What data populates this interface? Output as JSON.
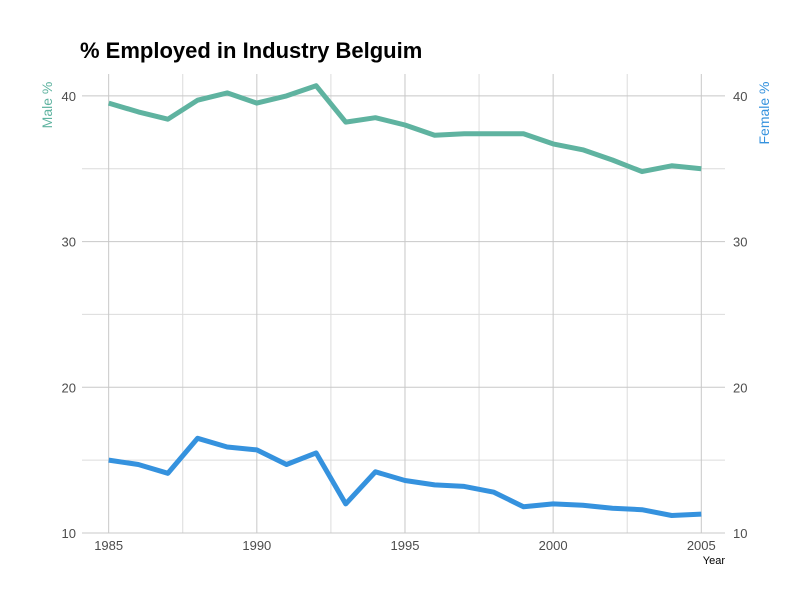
{
  "chart_data": {
    "type": "line",
    "title": "% Employed in Industry Belguim",
    "xlabel": "Year",
    "ylabel_left": "Male %",
    "ylabel_right": "Female %",
    "x": [
      1985,
      1986,
      1987,
      1988,
      1989,
      1990,
      1991,
      1992,
      1993,
      1994,
      1995,
      1996,
      1997,
      1998,
      1999,
      2000,
      2001,
      2002,
      2003,
      2004,
      2005
    ],
    "xlim": [
      1984.1,
      2005.8
    ],
    "ylim": [
      10,
      41.5
    ],
    "x_ticks": [
      1985,
      1990,
      1995,
      2000,
      2005
    ],
    "y_ticks": [
      10,
      20,
      30,
      40
    ],
    "grid": true,
    "series": [
      {
        "name": "Male %",
        "color": "#5fb3a0",
        "values": [
          39.5,
          38.9,
          38.4,
          39.7,
          40.2,
          39.5,
          40.0,
          40.7,
          38.2,
          38.5,
          38.0,
          37.3,
          37.4,
          37.4,
          37.4,
          36.7,
          36.3,
          35.6,
          34.8,
          35.2,
          35.0
        ]
      },
      {
        "name": "Female %",
        "color": "#3592de",
        "values": [
          15.0,
          14.7,
          14.1,
          16.5,
          15.9,
          15.7,
          14.7,
          15.5,
          12.0,
          14.2,
          13.6,
          13.3,
          13.2,
          12.8,
          11.8,
          12.0,
          11.9,
          11.7,
          11.6,
          11.2,
          11.3
        ]
      }
    ]
  }
}
